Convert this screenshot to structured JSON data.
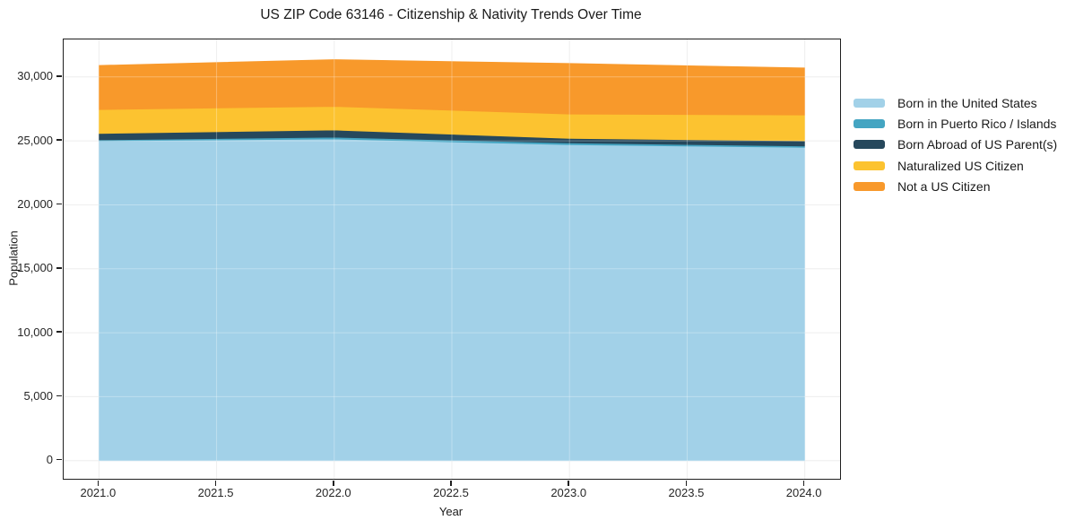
{
  "chart_data": {
    "type": "area",
    "stacked": true,
    "title": "US ZIP Code 63146 - Citizenship & Nativity Trends Over Time",
    "xlabel": "Year",
    "ylabel": "Population",
    "x": [
      2021.0,
      2022.0,
      2023.0,
      2024.0
    ],
    "series": [
      {
        "name": "Born in the United States",
        "color": "#A2D1E8",
        "values": [
          25000,
          25150,
          24700,
          24500
        ]
      },
      {
        "name": "Born in Puerto Rico / Islands",
        "color": "#44A5C2",
        "values": [
          80,
          140,
          140,
          100
        ]
      },
      {
        "name": "Born Abroad of US Parent(s)",
        "color": "#26485C",
        "values": [
          500,
          560,
          350,
          400
        ]
      },
      {
        "name": "Naturalized US Citizen",
        "color": "#FCC330",
        "values": [
          1870,
          1840,
          1910,
          2030
        ]
      },
      {
        "name": "Not a US Citizen",
        "color": "#F8992B",
        "values": [
          3450,
          3660,
          3950,
          3670
        ]
      }
    ],
    "xlim": [
      2020.85,
      2024.15
    ],
    "ylim": [
      -1420,
      32930
    ],
    "xticks": {
      "values": [
        2021.0,
        2021.5,
        2022.0,
        2022.5,
        2023.0,
        2023.5,
        2024.0
      ],
      "labels": [
        "2021.0",
        "2021.5",
        "2022.0",
        "2022.5",
        "2023.0",
        "2023.5",
        "2024.0"
      ]
    },
    "yticks": {
      "values": [
        0,
        5000,
        10000,
        15000,
        20000,
        25000,
        30000
      ],
      "labels": [
        "0",
        "5,000",
        "10,000",
        "15,000",
        "20,000",
        "25,000",
        "30,000"
      ]
    },
    "grid": true,
    "legend_position": "right",
    "colors": {
      "background": "#FFFFFF",
      "grid_under": "#E9E9E9",
      "grid_over": "rgba(255,255,255,0.30)",
      "spine": "#1F1F1F",
      "text": "#1A1A1A"
    }
  }
}
